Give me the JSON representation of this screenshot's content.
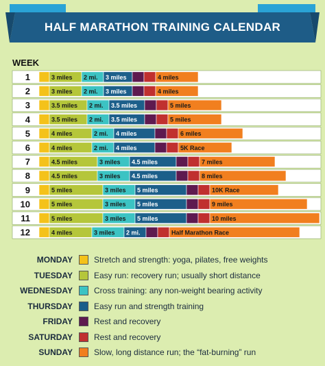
{
  "title": "HALF MARATHON TRAINING CALENDAR",
  "week_header": "WEEK",
  "colors": {
    "monday": "#f4c21a",
    "tuesday": "#b5c63a",
    "wednesday": "#3cc3c3",
    "thursday": "#1c5f8a",
    "friday": "#5e1a4f",
    "saturday": "#c0302f",
    "sunday": "#f17f1f",
    "banner": "#1e5c87"
  },
  "chart_data": {
    "type": "table",
    "weeks": [
      {
        "week": "1",
        "days": [
          {
            "label": "",
            "w": 15
          },
          {
            "label": "3 miles",
            "w": 47
          },
          {
            "label": "2 mi.",
            "w": 32
          },
          {
            "label": "3 miles",
            "w": 42
          },
          {
            "label": "",
            "w": 17
          },
          {
            "label": "",
            "w": 17
          },
          {
            "label": "4 miles",
            "w": 62
          }
        ]
      },
      {
        "week": "2",
        "days": [
          {
            "label": "",
            "w": 15
          },
          {
            "label": "3 miles",
            "w": 47
          },
          {
            "label": "2 mi.",
            "w": 32
          },
          {
            "label": "3 miles",
            "w": 42
          },
          {
            "label": "",
            "w": 17
          },
          {
            "label": "",
            "w": 17
          },
          {
            "label": "4 miles",
            "w": 62
          }
        ]
      },
      {
        "week": "3",
        "days": [
          {
            "label": "",
            "w": 15
          },
          {
            "label": "3.5 miles",
            "w": 55
          },
          {
            "label": "2 mi.",
            "w": 32
          },
          {
            "label": "3.5 miles",
            "w": 52
          },
          {
            "label": "",
            "w": 17
          },
          {
            "label": "",
            "w": 17
          },
          {
            "label": "5 miles",
            "w": 78
          }
        ]
      },
      {
        "week": "4",
        "days": [
          {
            "label": "",
            "w": 15
          },
          {
            "label": "3.5 miles",
            "w": 55
          },
          {
            "label": "2 mi.",
            "w": 32
          },
          {
            "label": "3.5 miles",
            "w": 52
          },
          {
            "label": "",
            "w": 17
          },
          {
            "label": "",
            "w": 17
          },
          {
            "label": "5 miles",
            "w": 78
          }
        ]
      },
      {
        "week": "5",
        "days": [
          {
            "label": "",
            "w": 15
          },
          {
            "label": "4 miles",
            "w": 62
          },
          {
            "label": "2 mi.",
            "w": 32
          },
          {
            "label": "4 miles",
            "w": 60
          },
          {
            "label": "",
            "w": 17
          },
          {
            "label": "",
            "w": 17
          },
          {
            "label": "6 miles",
            "w": 94
          }
        ]
      },
      {
        "week": "6",
        "days": [
          {
            "label": "",
            "w": 15
          },
          {
            "label": "4 miles",
            "w": 62
          },
          {
            "label": "2 mi.",
            "w": 32
          },
          {
            "label": "4 miles",
            "w": 60
          },
          {
            "label": "",
            "w": 17
          },
          {
            "label": "",
            "w": 17
          },
          {
            "label": "5K Race",
            "w": 78
          }
        ]
      },
      {
        "week": "7",
        "days": [
          {
            "label": "",
            "w": 15
          },
          {
            "label": "4.5 miles",
            "w": 70
          },
          {
            "label": "3 miles",
            "w": 47
          },
          {
            "label": "4.5 miles",
            "w": 68
          },
          {
            "label": "",
            "w": 17
          },
          {
            "label": "",
            "w": 17
          },
          {
            "label": "7 miles",
            "w": 110
          }
        ]
      },
      {
        "week": "8",
        "days": [
          {
            "label": "",
            "w": 15
          },
          {
            "label": "4.5 miles",
            "w": 70
          },
          {
            "label": "3 miles",
            "w": 47
          },
          {
            "label": "4.5 miles",
            "w": 68
          },
          {
            "label": "",
            "w": 17
          },
          {
            "label": "",
            "w": 17
          },
          {
            "label": "8 miles",
            "w": 126
          }
        ]
      },
      {
        "week": "9",
        "days": [
          {
            "label": "",
            "w": 15
          },
          {
            "label": "5 miles",
            "w": 78
          },
          {
            "label": "3 miles",
            "w": 47
          },
          {
            "label": "5 miles",
            "w": 75
          },
          {
            "label": "",
            "w": 17
          },
          {
            "label": "",
            "w": 17
          },
          {
            "label": "10K Race",
            "w": 100
          }
        ]
      },
      {
        "week": "10",
        "days": [
          {
            "label": "",
            "w": 15
          },
          {
            "label": "5 miles",
            "w": 78
          },
          {
            "label": "3 miles",
            "w": 47
          },
          {
            "label": "5 miles",
            "w": 75
          },
          {
            "label": "",
            "w": 17
          },
          {
            "label": "",
            "w": 17
          },
          {
            "label": "9 miles",
            "w": 142
          }
        ]
      },
      {
        "week": "11",
        "days": [
          {
            "label": "",
            "w": 15
          },
          {
            "label": "5 miles",
            "w": 78
          },
          {
            "label": "3 miles",
            "w": 47
          },
          {
            "label": "5 miles",
            "w": 75
          },
          {
            "label": "",
            "w": 17
          },
          {
            "label": "",
            "w": 17
          },
          {
            "label": "10 miles",
            "w": 160
          }
        ]
      },
      {
        "week": "12",
        "days": [
          {
            "label": "",
            "w": 15
          },
          {
            "label": "4 miles",
            "w": 62
          },
          {
            "label": "3 miles",
            "w": 47
          },
          {
            "label": "2 mi.",
            "w": 32
          },
          {
            "label": "",
            "w": 17
          },
          {
            "label": "",
            "w": 17
          },
          {
            "label": "Half Marathon Race",
            "w": 190
          }
        ]
      }
    ],
    "legend": [
      {
        "day": "MONDAY",
        "key": "monday",
        "desc": "Stretch and strength: yoga, pilates, free weights"
      },
      {
        "day": "TUESDAY",
        "key": "tuesday",
        "desc": "Easy run: recovery run; usually short distance"
      },
      {
        "day": "WEDNESDAY",
        "key": "wednesday",
        "desc": "Cross training: any non-weight bearing activity"
      },
      {
        "day": "THURSDAY",
        "key": "thursday",
        "desc": "Easy run and strength training"
      },
      {
        "day": "FRIDAY",
        "key": "friday",
        "desc": "Rest and recovery"
      },
      {
        "day": "SATURDAY",
        "key": "saturday",
        "desc": "Rest and recovery"
      },
      {
        "day": "SUNDAY",
        "key": "sunday",
        "desc": "Slow, long distance run; the “fat-burning” run"
      }
    ]
  }
}
